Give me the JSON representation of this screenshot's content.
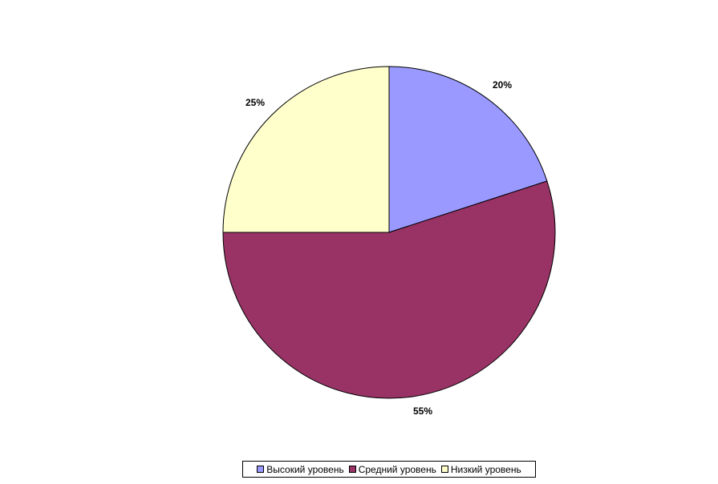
{
  "chart_data": {
    "type": "pie",
    "categories": [
      "Высокий уровень",
      "Средний уровень",
      "Низкий уровень"
    ],
    "values": [
      20,
      55,
      25
    ],
    "data_labels": [
      "20%",
      "55%",
      "25%"
    ],
    "colors": [
      "#9999FF",
      "#993366",
      "#FFFFCC"
    ],
    "start": "top",
    "direction": "clockwise",
    "legend_placement": "bottom"
  }
}
